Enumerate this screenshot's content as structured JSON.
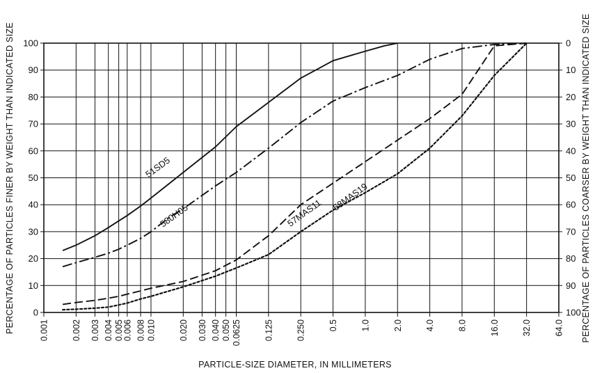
{
  "chart_data": {
    "type": "line",
    "title": "",
    "xlabel": "PARTICLE-SIZE DIAMETER, IN MILLIMETERS",
    "ylabel": "PERCENTAGE OF PARTICLES FINER BY WEIGHT THAN INDICATED SIZE",
    "ylabel_right": "PERCENTAGE OF PARTICLES COARSER BY WEIGHT THAN INDICATED SIZE",
    "x_scale": "log",
    "xlim": [
      0.001,
      64
    ],
    "ylim": [
      0,
      100
    ],
    "grid": true,
    "legend": "none (series labeled directly on curves)",
    "x_tick_labels": [
      {
        "value": 0.001,
        "label": "0.001"
      },
      {
        "value": 0.002,
        "label": "0.002"
      },
      {
        "value": 0.003,
        "label": "0.003"
      },
      {
        "value": 0.004,
        "label": "0.004"
      },
      {
        "value": 0.005,
        "label": "0.005"
      },
      {
        "value": 0.006,
        "label": "0.006"
      },
      {
        "value": 0.008,
        "label": "0.008"
      },
      {
        "value": 0.01,
        "label": "0.010"
      },
      {
        "value": 0.02,
        "label": "0.020"
      },
      {
        "value": 0.03,
        "label": "0.030"
      },
      {
        "value": 0.04,
        "label": "0.040"
      },
      {
        "value": 0.05,
        "label": "0.050"
      },
      {
        "value": 0.0625,
        "label": "0.0625"
      },
      {
        "value": 0.125,
        "label": "0.125"
      },
      {
        "value": 0.25,
        "label": "0.250"
      },
      {
        "value": 0.5,
        "label": "0.5"
      },
      {
        "value": 1.0,
        "label": "1.0"
      },
      {
        "value": 2.0,
        "label": "2.0"
      },
      {
        "value": 4.0,
        "label": "4.0"
      },
      {
        "value": 8.0,
        "label": "8.0"
      },
      {
        "value": 16.0,
        "label": "16.0"
      },
      {
        "value": 32.0,
        "label": "32.0"
      },
      {
        "value": 64.0,
        "label": "64.0"
      }
    ],
    "y_ticks_left": [
      {
        "value": 0,
        "label": "0"
      },
      {
        "value": 10,
        "label": "10"
      },
      {
        "value": 20,
        "label": "20"
      },
      {
        "value": 30,
        "label": "30"
      },
      {
        "value": 40,
        "label": "40"
      },
      {
        "value": 50,
        "label": "50"
      },
      {
        "value": 60,
        "label": "60"
      },
      {
        "value": 70,
        "label": "70"
      },
      {
        "value": 80,
        "label": "80"
      },
      {
        "value": 90,
        "label": "90"
      },
      {
        "value": 100,
        "label": "100"
      }
    ],
    "y_ticks_right": [
      {
        "value": 100,
        "label": "0"
      },
      {
        "value": 90,
        "label": "10"
      },
      {
        "value": 80,
        "label": "20"
      },
      {
        "value": 70,
        "label": "30"
      },
      {
        "value": 60,
        "label": "40"
      },
      {
        "value": 50,
        "label": "50"
      },
      {
        "value": 40,
        "label": "60"
      },
      {
        "value": 30,
        "label": "70"
      },
      {
        "value": 20,
        "label": "80"
      },
      {
        "value": 10,
        "label": "90"
      },
      {
        "value": 0,
        "label": "100"
      }
    ],
    "series": [
      {
        "name": "51SD5",
        "style": "solid",
        "label_at": {
          "x": 0.012,
          "y": 53
        },
        "x": [
          0.0015,
          0.002,
          0.003,
          0.004,
          0.005,
          0.006,
          0.008,
          0.01,
          0.02,
          0.04,
          0.0625,
          0.125,
          0.25,
          0.5,
          1.0,
          1.5,
          2.0
        ],
        "y": [
          23,
          25,
          28.5,
          31.5,
          34,
          36,
          39.5,
          42.5,
          52,
          61.5,
          69,
          78,
          87,
          93.5,
          97,
          99,
          100
        ]
      },
      {
        "name": "580H05",
        "style": "dash-dot",
        "label_at": {
          "x": 0.017,
          "y": 35
        },
        "x": [
          0.0015,
          0.002,
          0.003,
          0.004,
          0.005,
          0.006,
          0.008,
          0.01,
          0.015,
          0.02,
          0.04,
          0.0625,
          0.125,
          0.25,
          0.5,
          1.0,
          2.0,
          4.0,
          8.0,
          16.0,
          32.0
        ],
        "y": [
          17,
          18.5,
          20.5,
          22,
          23.5,
          25,
          27.5,
          30,
          35.5,
          38.5,
          47,
          52,
          61,
          70.5,
          78.5,
          83.5,
          88,
          94,
          98,
          99.5,
          100
        ]
      },
      {
        "name": "57MAS11",
        "style": "long-dash",
        "label_at": {
          "x": 0.28,
          "y": 36
        },
        "x": [
          0.0015,
          0.002,
          0.003,
          0.004,
          0.005,
          0.006,
          0.008,
          0.01,
          0.02,
          0.04,
          0.0625,
          0.125,
          0.25,
          0.5,
          1.0,
          2.0,
          4.0,
          8.0,
          16.0,
          32.0
        ],
        "y": [
          3,
          3.7,
          4.5,
          5.3,
          6,
          6.8,
          8,
          9,
          11.5,
          15.5,
          19.5,
          28.5,
          40,
          48,
          56,
          64,
          72,
          81,
          99,
          100
        ]
      },
      {
        "name": "58MAS19",
        "style": "dotted",
        "label_at": {
          "x": 0.75,
          "y": 42
        },
        "x": [
          0.0015,
          0.002,
          0.003,
          0.004,
          0.005,
          0.006,
          0.008,
          0.01,
          0.02,
          0.04,
          0.0625,
          0.125,
          0.25,
          0.5,
          1.0,
          2.0,
          4.0,
          8.0,
          16.0,
          32.0
        ],
        "y": [
          1,
          1.2,
          1.6,
          2,
          2.8,
          3.5,
          5,
          6,
          9.5,
          13.5,
          16.5,
          21.5,
          30,
          38,
          44.5,
          51.5,
          61,
          73,
          88,
          100
        ]
      }
    ]
  }
}
